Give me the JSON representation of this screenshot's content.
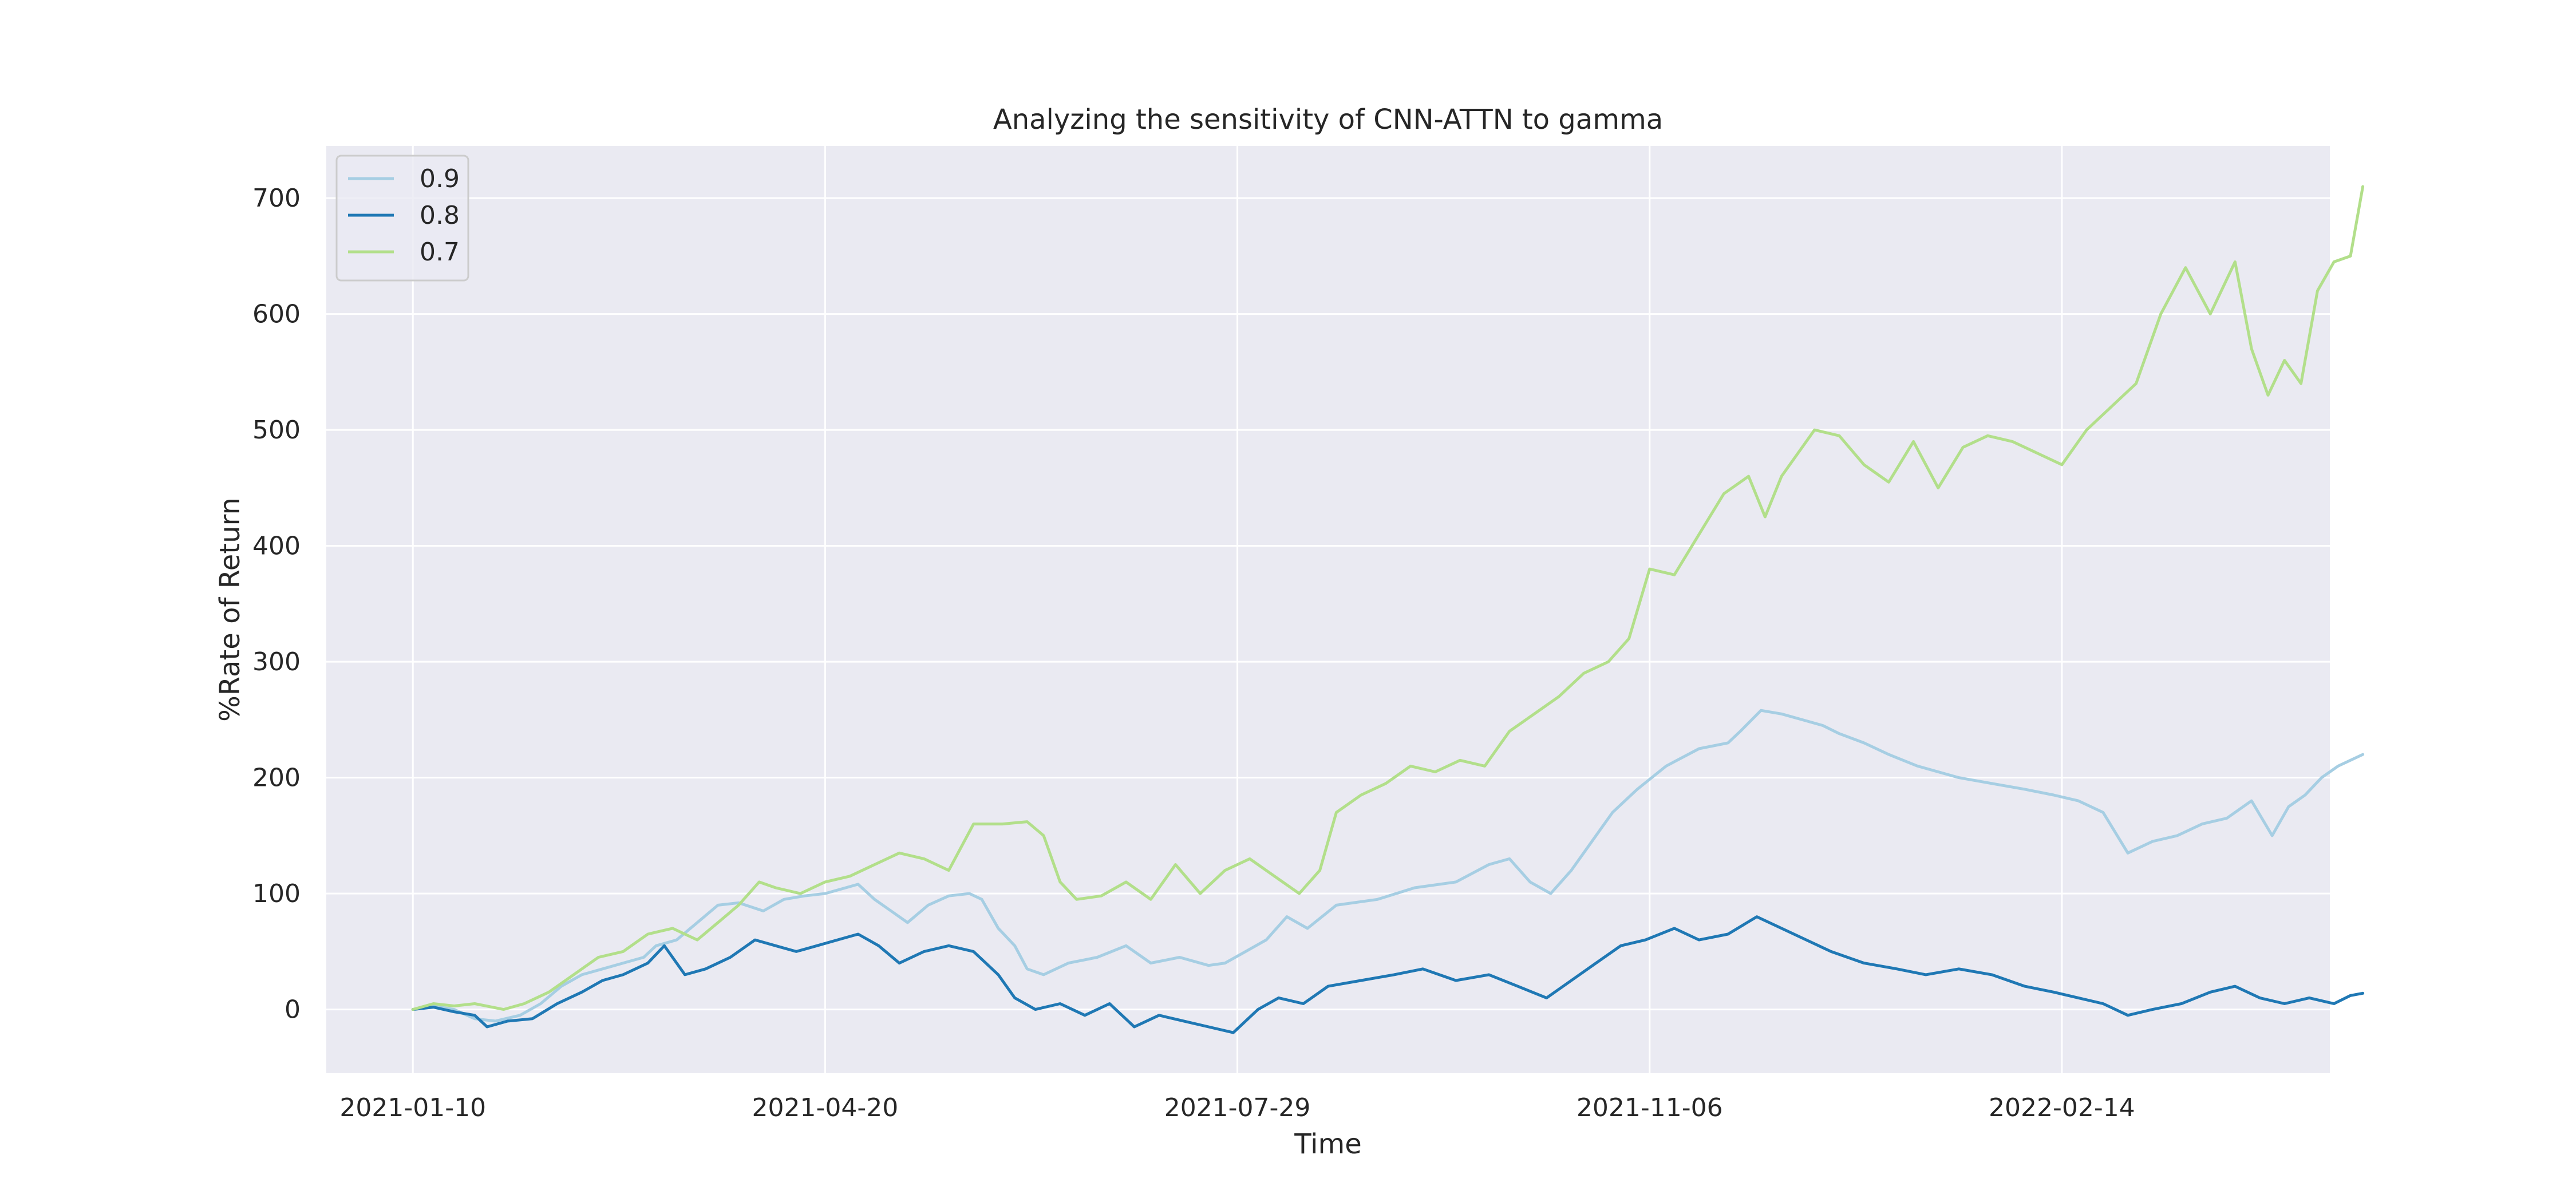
{
  "chart_data": {
    "type": "line",
    "title": "Analyzing the sensitivity of CNN-ATTN to gamma",
    "xlabel": "Time",
    "ylabel": "%Rate of Return",
    "x_ticks": [
      "2021-01-10",
      "2021-04-20",
      "2021-07-29",
      "2021-11-06",
      "2022-02-14"
    ],
    "x_range": [
      "2020-12-20",
      "2022-04-20"
    ],
    "ylim": [
      -55,
      745
    ],
    "y_ticks": [
      0,
      100,
      200,
      300,
      400,
      500,
      600,
      700
    ],
    "grid": true,
    "legend_position": "top-left",
    "series": [
      {
        "name": "0.9",
        "color": "#a6cee3",
        "points": [
          [
            "2021-01-10",
            0
          ],
          [
            "2021-01-15",
            3
          ],
          [
            "2021-01-20",
            0
          ],
          [
            "2021-01-25",
            -8
          ],
          [
            "2021-01-30",
            -10
          ],
          [
            "2021-02-05",
            -5
          ],
          [
            "2021-02-10",
            5
          ],
          [
            "2021-02-15",
            20
          ],
          [
            "2021-02-20",
            30
          ],
          [
            "2021-02-25",
            35
          ],
          [
            "2021-03-02",
            40
          ],
          [
            "2021-03-07",
            45
          ],
          [
            "2021-03-10",
            55
          ],
          [
            "2021-03-15",
            60
          ],
          [
            "2021-03-20",
            75
          ],
          [
            "2021-03-25",
            90
          ],
          [
            "2021-03-30",
            92
          ],
          [
            "2021-04-05",
            85
          ],
          [
            "2021-04-10",
            95
          ],
          [
            "2021-04-15",
            98
          ],
          [
            "2021-04-20",
            100
          ],
          [
            "2021-04-25",
            105
          ],
          [
            "2021-04-28",
            108
          ],
          [
            "2021-05-02",
            95
          ],
          [
            "2021-05-06",
            85
          ],
          [
            "2021-05-10",
            75
          ],
          [
            "2021-05-15",
            90
          ],
          [
            "2021-05-20",
            98
          ],
          [
            "2021-05-25",
            100
          ],
          [
            "2021-05-28",
            95
          ],
          [
            "2021-06-01",
            70
          ],
          [
            "2021-06-05",
            55
          ],
          [
            "2021-06-08",
            35
          ],
          [
            "2021-06-12",
            30
          ],
          [
            "2021-06-18",
            40
          ],
          [
            "2021-06-25",
            45
          ],
          [
            "2021-07-02",
            55
          ],
          [
            "2021-07-08",
            40
          ],
          [
            "2021-07-15",
            45
          ],
          [
            "2021-07-22",
            38
          ],
          [
            "2021-07-26",
            40
          ],
          [
            "2021-07-30",
            48
          ],
          [
            "2021-08-05",
            60
          ],
          [
            "2021-08-10",
            80
          ],
          [
            "2021-08-15",
            70
          ],
          [
            "2021-08-22",
            90
          ],
          [
            "2021-09-01",
            95
          ],
          [
            "2021-09-10",
            105
          ],
          [
            "2021-09-20",
            110
          ],
          [
            "2021-09-28",
            125
          ],
          [
            "2021-10-03",
            130
          ],
          [
            "2021-10-08",
            110
          ],
          [
            "2021-10-13",
            100
          ],
          [
            "2021-10-18",
            120
          ],
          [
            "2021-10-23",
            145
          ],
          [
            "2021-10-28",
            170
          ],
          [
            "2021-11-03",
            190
          ],
          [
            "2021-11-10",
            210
          ],
          [
            "2021-11-18",
            225
          ],
          [
            "2021-11-25",
            230
          ],
          [
            "2021-11-28",
            240
          ],
          [
            "2021-12-03",
            258
          ],
          [
            "2021-12-08",
            255
          ],
          [
            "2021-12-13",
            250
          ],
          [
            "2021-12-18",
            245
          ],
          [
            "2021-12-22",
            238
          ],
          [
            "2021-12-28",
            230
          ],
          [
            "2022-01-03",
            220
          ],
          [
            "2022-01-10",
            210
          ],
          [
            "2022-01-20",
            200
          ],
          [
            "2022-01-28",
            195
          ],
          [
            "2022-02-05",
            190
          ],
          [
            "2022-02-12",
            185
          ],
          [
            "2022-02-18",
            180
          ],
          [
            "2022-02-24",
            170
          ],
          [
            "2022-03-02",
            135
          ],
          [
            "2022-03-08",
            145
          ],
          [
            "2022-03-14",
            150
          ],
          [
            "2022-03-20",
            160
          ],
          [
            "2022-03-26",
            165
          ],
          [
            "2022-04-01",
            180
          ],
          [
            "2022-04-06",
            150
          ],
          [
            "2022-04-10",
            175
          ],
          [
            "2022-04-14",
            185
          ],
          [
            "2022-04-18",
            200
          ],
          [
            "2022-04-22",
            210
          ],
          [
            "2022-04-28",
            220
          ]
        ]
      },
      {
        "name": "0.8",
        "color": "#1f78b4",
        "points": [
          [
            "2021-01-10",
            0
          ],
          [
            "2021-01-15",
            2
          ],
          [
            "2021-01-20",
            -2
          ],
          [
            "2021-01-25",
            -5
          ],
          [
            "2021-01-28",
            -15
          ],
          [
            "2021-02-02",
            -10
          ],
          [
            "2021-02-08",
            -8
          ],
          [
            "2021-02-14",
            5
          ],
          [
            "2021-02-20",
            15
          ],
          [
            "2021-02-25",
            25
          ],
          [
            "2021-03-02",
            30
          ],
          [
            "2021-03-08",
            40
          ],
          [
            "2021-03-12",
            55
          ],
          [
            "2021-03-17",
            30
          ],
          [
            "2021-03-22",
            35
          ],
          [
            "2021-03-28",
            45
          ],
          [
            "2021-04-03",
            60
          ],
          [
            "2021-04-08",
            55
          ],
          [
            "2021-04-13",
            50
          ],
          [
            "2021-04-18",
            55
          ],
          [
            "2021-04-23",
            60
          ],
          [
            "2021-04-28",
            65
          ],
          [
            "2021-05-03",
            55
          ],
          [
            "2021-05-08",
            40
          ],
          [
            "2021-05-14",
            50
          ],
          [
            "2021-05-20",
            55
          ],
          [
            "2021-05-26",
            50
          ],
          [
            "2021-06-01",
            30
          ],
          [
            "2021-06-05",
            10
          ],
          [
            "2021-06-10",
            0
          ],
          [
            "2021-06-16",
            5
          ],
          [
            "2021-06-22",
            -5
          ],
          [
            "2021-06-28",
            5
          ],
          [
            "2021-07-04",
            -15
          ],
          [
            "2021-07-10",
            -5
          ],
          [
            "2021-07-16",
            -10
          ],
          [
            "2021-07-22",
            -15
          ],
          [
            "2021-07-28",
            -20
          ],
          [
            "2021-08-03",
            0
          ],
          [
            "2021-08-08",
            10
          ],
          [
            "2021-08-14",
            5
          ],
          [
            "2021-08-20",
            20
          ],
          [
            "2021-08-28",
            25
          ],
          [
            "2021-09-05",
            30
          ],
          [
            "2021-09-12",
            35
          ],
          [
            "2021-09-20",
            25
          ],
          [
            "2021-09-28",
            30
          ],
          [
            "2021-10-05",
            20
          ],
          [
            "2021-10-12",
            10
          ],
          [
            "2021-10-18",
            25
          ],
          [
            "2021-10-24",
            40
          ],
          [
            "2021-10-30",
            55
          ],
          [
            "2021-11-05",
            60
          ],
          [
            "2021-11-12",
            70
          ],
          [
            "2021-11-18",
            60
          ],
          [
            "2021-11-25",
            65
          ],
          [
            "2021-12-02",
            80
          ],
          [
            "2021-12-08",
            70
          ],
          [
            "2021-12-14",
            60
          ],
          [
            "2021-12-20",
            50
          ],
          [
            "2021-12-28",
            40
          ],
          [
            "2022-01-05",
            35
          ],
          [
            "2022-01-12",
            30
          ],
          [
            "2022-01-20",
            35
          ],
          [
            "2022-01-28",
            30
          ],
          [
            "2022-02-05",
            20
          ],
          [
            "2022-02-12",
            15
          ],
          [
            "2022-02-18",
            10
          ],
          [
            "2022-02-24",
            5
          ],
          [
            "2022-03-02",
            -5
          ],
          [
            "2022-03-08",
            0
          ],
          [
            "2022-03-15",
            5
          ],
          [
            "2022-03-22",
            15
          ],
          [
            "2022-03-28",
            20
          ],
          [
            "2022-04-03",
            10
          ],
          [
            "2022-04-09",
            5
          ],
          [
            "2022-04-15",
            10
          ],
          [
            "2022-04-21",
            5
          ],
          [
            "2022-04-25",
            12
          ],
          [
            "2022-04-28",
            14
          ]
        ]
      },
      {
        "name": "0.7",
        "color": "#b2df8a",
        "points": [
          [
            "2021-01-10",
            0
          ],
          [
            "2021-01-15",
            5
          ],
          [
            "2021-01-20",
            3
          ],
          [
            "2021-01-25",
            5
          ],
          [
            "2021-02-01",
            0
          ],
          [
            "2021-02-06",
            5
          ],
          [
            "2021-02-12",
            15
          ],
          [
            "2021-02-18",
            30
          ],
          [
            "2021-02-24",
            45
          ],
          [
            "2021-03-02",
            50
          ],
          [
            "2021-03-08",
            65
          ],
          [
            "2021-03-14",
            70
          ],
          [
            "2021-03-20",
            60
          ],
          [
            "2021-03-25",
            75
          ],
          [
            "2021-03-30",
            90
          ],
          [
            "2021-04-04",
            110
          ],
          [
            "2021-04-08",
            105
          ],
          [
            "2021-04-14",
            100
          ],
          [
            "2021-04-20",
            110
          ],
          [
            "2021-04-26",
            115
          ],
          [
            "2021-05-02",
            125
          ],
          [
            "2021-05-08",
            135
          ],
          [
            "2021-05-14",
            130
          ],
          [
            "2021-05-20",
            120
          ],
          [
            "2021-05-26",
            160
          ],
          [
            "2021-06-02",
            160
          ],
          [
            "2021-06-08",
            162
          ],
          [
            "2021-06-12",
            150
          ],
          [
            "2021-06-16",
            110
          ],
          [
            "2021-06-20",
            95
          ],
          [
            "2021-06-26",
            98
          ],
          [
            "2021-07-02",
            110
          ],
          [
            "2021-07-08",
            95
          ],
          [
            "2021-07-14",
            125
          ],
          [
            "2021-07-20",
            100
          ],
          [
            "2021-07-26",
            120
          ],
          [
            "2021-08-01",
            130
          ],
          [
            "2021-08-07",
            115
          ],
          [
            "2021-08-13",
            100
          ],
          [
            "2021-08-18",
            120
          ],
          [
            "2021-08-22",
            170
          ],
          [
            "2021-08-28",
            185
          ],
          [
            "2021-09-03",
            195
          ],
          [
            "2021-09-09",
            210
          ],
          [
            "2021-09-15",
            205
          ],
          [
            "2021-09-21",
            215
          ],
          [
            "2021-09-27",
            210
          ],
          [
            "2021-10-03",
            240
          ],
          [
            "2021-10-09",
            255
          ],
          [
            "2021-10-15",
            270
          ],
          [
            "2021-10-21",
            290
          ],
          [
            "2021-10-27",
            300
          ],
          [
            "2021-11-01",
            320
          ],
          [
            "2021-11-06",
            380
          ],
          [
            "2021-11-12",
            375
          ],
          [
            "2021-11-18",
            410
          ],
          [
            "2021-11-24",
            445
          ],
          [
            "2021-11-30",
            460
          ],
          [
            "2021-12-04",
            425
          ],
          [
            "2021-12-08",
            460
          ],
          [
            "2021-12-12",
            480
          ],
          [
            "2021-12-16",
            500
          ],
          [
            "2021-12-22",
            495
          ],
          [
            "2021-12-28",
            470
          ],
          [
            "2022-01-03",
            455
          ],
          [
            "2022-01-09",
            490
          ],
          [
            "2022-01-15",
            450
          ],
          [
            "2022-01-21",
            485
          ],
          [
            "2022-01-27",
            495
          ],
          [
            "2022-02-02",
            490
          ],
          [
            "2022-02-08",
            480
          ],
          [
            "2022-02-14",
            470
          ],
          [
            "2022-02-20",
            500
          ],
          [
            "2022-02-26",
            520
          ],
          [
            "2022-03-04",
            540
          ],
          [
            "2022-03-10",
            600
          ],
          [
            "2022-03-16",
            640
          ],
          [
            "2022-03-22",
            600
          ],
          [
            "2022-03-28",
            645
          ],
          [
            "2022-04-01",
            570
          ],
          [
            "2022-04-05",
            530
          ],
          [
            "2022-04-09",
            560
          ],
          [
            "2022-04-13",
            540
          ],
          [
            "2022-04-17",
            620
          ],
          [
            "2022-04-21",
            645
          ],
          [
            "2022-04-25",
            650
          ],
          [
            "2022-04-28",
            710
          ]
        ]
      }
    ]
  }
}
